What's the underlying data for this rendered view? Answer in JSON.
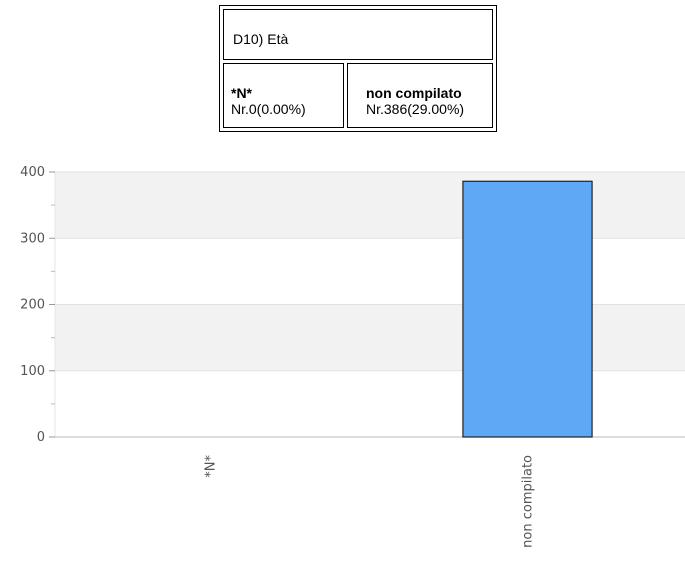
{
  "summary": {
    "title": "D10) Età",
    "cells": [
      {
        "label": "*N*",
        "value": "Nr.0(0.00%)"
      },
      {
        "label": "non compilato",
        "value": "Nr.386(29.00%)"
      }
    ]
  },
  "chart_data": {
    "type": "bar",
    "categories": [
      "*N*",
      "non compilato"
    ],
    "values": [
      0,
      386
    ],
    "ylim": [
      0,
      400
    ],
    "yticks": [
      0,
      100,
      200,
      300,
      400
    ],
    "title": "",
    "xlabel": "",
    "ylabel": "",
    "bar_color": "#5fa8f5",
    "band_color": "#f2f2f2",
    "grid": true
  }
}
